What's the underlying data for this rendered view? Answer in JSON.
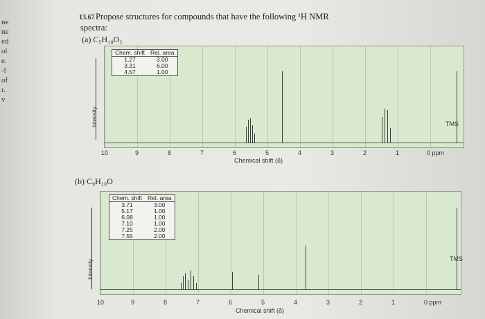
{
  "margin_words": [
    "ne",
    "ne",
    "ed",
    "ol",
    "e.",
    "-l",
    "of",
    "r.",
    "v"
  ],
  "problem": {
    "number": "13.67",
    "text_line1": "Propose structures for compounds that have the following ¹H NMR",
    "text_line2": "spectra:"
  },
  "spectrum_a": {
    "label": "(a) C₅H₁₀O₂",
    "table_headers": [
      "Chem. shift",
      "Rel. area"
    ],
    "table_rows": [
      [
        "1.27",
        "3.00"
      ],
      [
        "3.31",
        "6.00"
      ],
      [
        "4.57",
        "1.00"
      ]
    ],
    "y_label": "Intensity",
    "x_title": "Chemical shift (δ)",
    "ticks": [
      "10",
      "9",
      "8",
      "7",
      "6",
      "5",
      "4",
      "3",
      "2",
      "1",
      "0 ppm"
    ],
    "tms": "TMS"
  },
  "spectrum_b": {
    "label": "(b) C₉H₁₀O",
    "table_headers": [
      "Chem. shift",
      "Rel. area"
    ],
    "table_rows": [
      [
        "3.71",
        "3.00"
      ],
      [
        "5.17",
        "1.00"
      ],
      [
        "6.08",
        "1.00"
      ],
      [
        "7.10",
        "1.00"
      ],
      [
        "7.25",
        "2.00"
      ],
      [
        "7.55",
        "2.00"
      ]
    ],
    "y_label": "Intensity",
    "x_title": "Chemical shift (δ)",
    "ticks": [
      "10",
      "9",
      "8",
      "7",
      "6",
      "5",
      "4",
      "3",
      "2",
      "1",
      "0 ppm"
    ],
    "tms": "TMS"
  }
}
